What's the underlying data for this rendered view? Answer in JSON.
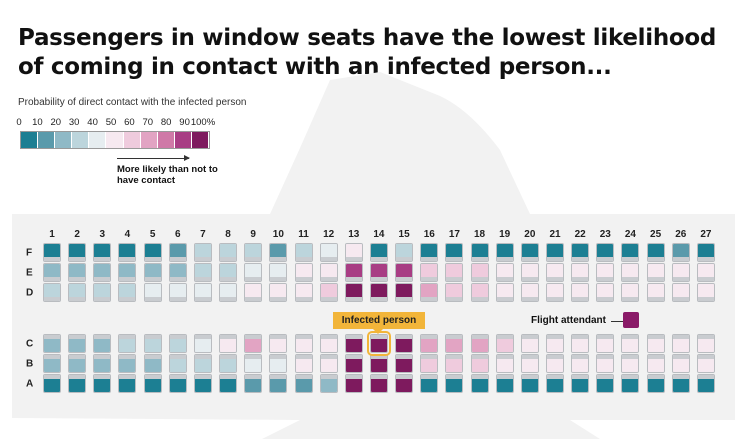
{
  "title": "Passengers in window seats have the lowest likelihood of coming in contact with an infected person...",
  "legend": {
    "title": "Probability of direct contact with the infected person",
    "ticks": [
      "0",
      "10",
      "20",
      "30",
      "40",
      "50",
      "60",
      "70",
      "80",
      "90",
      "100%"
    ],
    "colors": [
      "#1c7f93",
      "#5a9aab",
      "#8fb9c6",
      "#bcd5dc",
      "#e6edf0",
      "#f6e9f0",
      "#efcbdd",
      "#e2a4c3",
      "#cf79a7",
      "#a83d84",
      "#7e1a5e"
    ],
    "note": "More likely than not to have contact"
  },
  "columns": [
    "1",
    "2",
    "3",
    "4",
    "5",
    "6",
    "7",
    "8",
    "9",
    "10",
    "11",
    "12",
    "13",
    "14",
    "15",
    "16",
    "17",
    "18",
    "19",
    "20",
    "21",
    "22",
    "23",
    "24",
    "25",
    "26",
    "27"
  ],
  "row_labels": [
    "F",
    "E",
    "D",
    "C",
    "B",
    "A"
  ],
  "seats": {
    "F": [
      0,
      0,
      0,
      0,
      0,
      1,
      3,
      3,
      3,
      1,
      3,
      4,
      5,
      0,
      3,
      0,
      0,
      0,
      0,
      0,
      0,
      0,
      0,
      0,
      0,
      1,
      0
    ],
    "E": [
      2,
      2,
      2,
      2,
      2,
      2,
      3,
      3,
      4,
      4,
      5,
      5,
      9,
      9,
      9,
      6,
      6,
      6,
      5,
      5,
      5,
      5,
      5,
      5,
      5,
      5,
      5
    ],
    "D": [
      3,
      3,
      3,
      3,
      4,
      4,
      4,
      4,
      5,
      5,
      5,
      6,
      10,
      10,
      10,
      7,
      6,
      6,
      5,
      5,
      5,
      5,
      5,
      5,
      5,
      5,
      5
    ],
    "C": [
      2,
      2,
      2,
      3,
      3,
      3,
      4,
      5,
      7,
      5,
      5,
      5,
      10,
      10,
      10,
      7,
      7,
      7,
      6,
      5,
      5,
      5,
      5,
      5,
      5,
      5,
      5
    ],
    "B": [
      2,
      2,
      2,
      2,
      2,
      3,
      3,
      3,
      4,
      4,
      5,
      5,
      10,
      10,
      10,
      6,
      6,
      6,
      5,
      5,
      5,
      5,
      5,
      5,
      5,
      5,
      5
    ],
    "A": [
      0,
      0,
      0,
      0,
      0,
      0,
      0,
      0,
      1,
      1,
      1,
      2,
      10,
      10,
      10,
      0,
      0,
      0,
      0,
      0,
      0,
      0,
      0,
      0,
      0,
      0,
      0
    ]
  },
  "infected": {
    "row": "C",
    "column": "14",
    "label": "Infected person"
  },
  "flight_attendant": {
    "label": "Flight attendant",
    "color": "#8a1a68"
  }
}
